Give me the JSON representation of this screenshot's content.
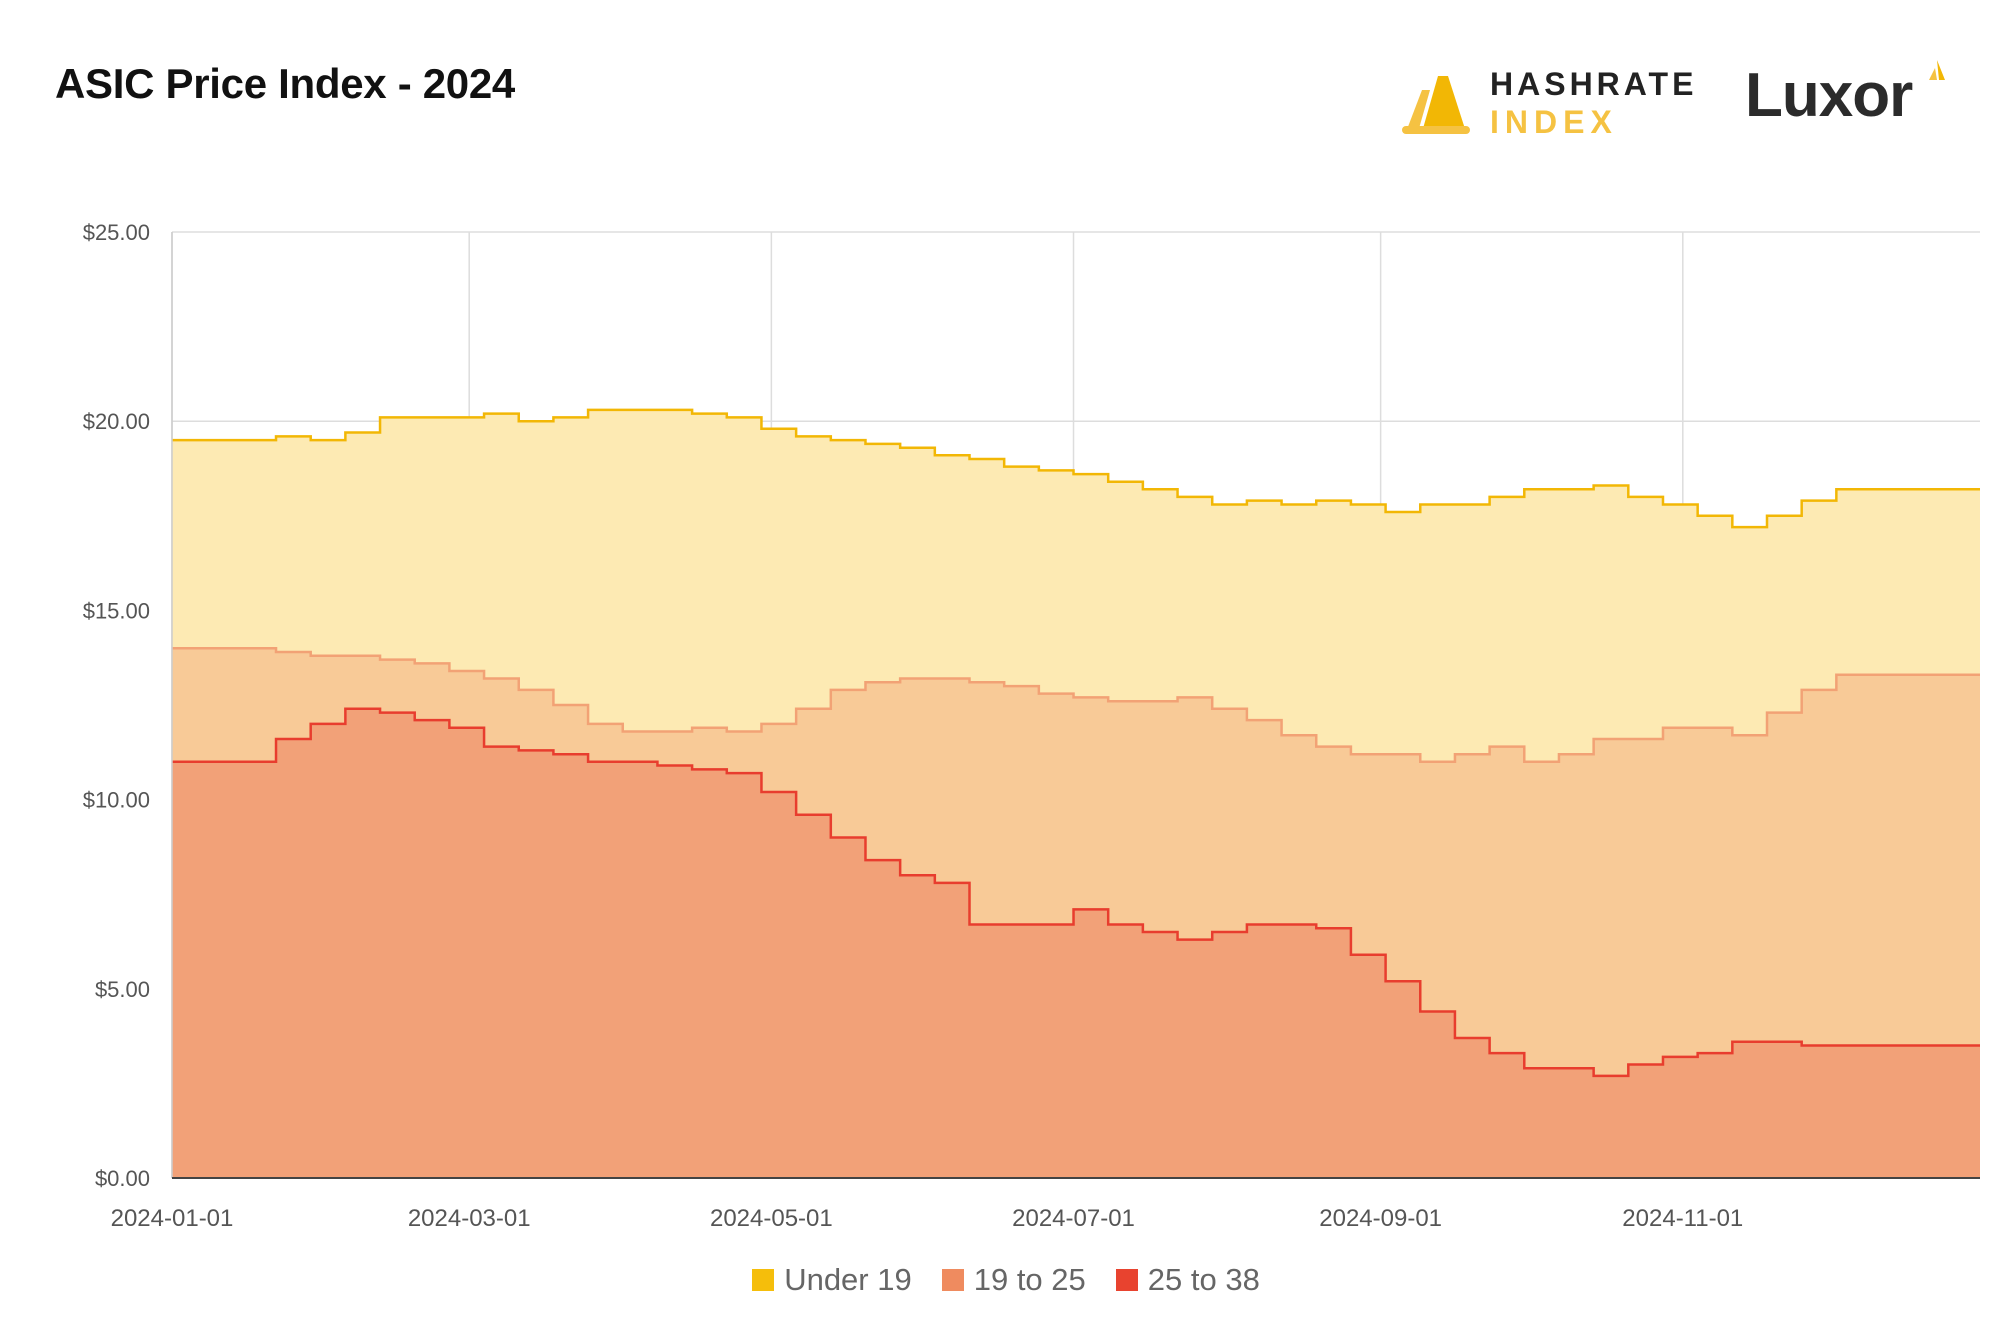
{
  "header": {
    "title": "ASIC Price Index - 2024"
  },
  "logos": {
    "hashrate_line1": "HASHRATE",
    "hashrate_line2": "INDEX",
    "luxor": "Luxor"
  },
  "colors": {
    "under19_line": "#f2b705",
    "under19_fill": "#fdeab3",
    "mid_line": "#f2a275",
    "mid_fill": "#f8ca97",
    "high_line": "#e83d2e",
    "high_fill": "#f2a178",
    "grid": "#dddddd",
    "axis_text": "#555555"
  },
  "chart_data": {
    "type": "area",
    "title": "ASIC Price Index - 2024",
    "xlabel": "",
    "ylabel": "",
    "x_range": [
      "2024-01-01",
      "2024-12-31"
    ],
    "ylim": [
      0,
      25
    ],
    "y_ticks": [
      0,
      5,
      10,
      15,
      20,
      25
    ],
    "y_tick_labels": [
      "$0.00",
      "$5.00",
      "$10.00",
      "$15.00",
      "$20.00",
      "$25.00"
    ],
    "x_ticks": [
      "2024-01-01",
      "2024-03-01",
      "2024-05-01",
      "2024-07-01",
      "2024-09-01",
      "2024-11-01"
    ],
    "x_tick_labels": [
      "2024-01-01",
      "2024-03-01",
      "2024-05-01",
      "2024-07-01",
      "2024-09-01",
      "2024-11-01"
    ],
    "grid": true,
    "legend_position": "bottom",
    "series": [
      {
        "name": "Under 19",
        "color": "#f2b705",
        "points": [
          [
            "2024-01-01",
            19.5
          ],
          [
            "2024-01-08",
            19.5
          ],
          [
            "2024-01-15",
            19.5
          ],
          [
            "2024-01-22",
            19.6
          ],
          [
            "2024-01-29",
            19.5
          ],
          [
            "2024-02-05",
            19.7
          ],
          [
            "2024-02-12",
            20.1
          ],
          [
            "2024-02-19",
            20.1
          ],
          [
            "2024-02-26",
            20.1
          ],
          [
            "2024-03-04",
            20.2
          ],
          [
            "2024-03-11",
            20.0
          ],
          [
            "2024-03-18",
            20.1
          ],
          [
            "2024-03-25",
            20.3
          ],
          [
            "2024-04-01",
            20.3
          ],
          [
            "2024-04-08",
            20.3
          ],
          [
            "2024-04-15",
            20.2
          ],
          [
            "2024-04-22",
            20.1
          ],
          [
            "2024-04-29",
            19.8
          ],
          [
            "2024-05-06",
            19.6
          ],
          [
            "2024-05-13",
            19.5
          ],
          [
            "2024-05-20",
            19.4
          ],
          [
            "2024-05-27",
            19.3
          ],
          [
            "2024-06-03",
            19.1
          ],
          [
            "2024-06-10",
            19.0
          ],
          [
            "2024-06-17",
            18.8
          ],
          [
            "2024-06-24",
            18.7
          ],
          [
            "2024-07-01",
            18.6
          ],
          [
            "2024-07-08",
            18.4
          ],
          [
            "2024-07-15",
            18.2
          ],
          [
            "2024-07-22",
            18.0
          ],
          [
            "2024-07-29",
            17.8
          ],
          [
            "2024-08-05",
            17.9
          ],
          [
            "2024-08-12",
            17.8
          ],
          [
            "2024-08-19",
            17.9
          ],
          [
            "2024-08-26",
            17.8
          ],
          [
            "2024-09-02",
            17.6
          ],
          [
            "2024-09-09",
            17.8
          ],
          [
            "2024-09-16",
            17.8
          ],
          [
            "2024-09-23",
            18.0
          ],
          [
            "2024-09-30",
            18.2
          ],
          [
            "2024-10-07",
            18.2
          ],
          [
            "2024-10-14",
            18.3
          ],
          [
            "2024-10-21",
            18.0
          ],
          [
            "2024-10-28",
            17.8
          ],
          [
            "2024-11-04",
            17.5
          ],
          [
            "2024-11-11",
            17.2
          ],
          [
            "2024-11-18",
            17.5
          ],
          [
            "2024-11-25",
            17.9
          ],
          [
            "2024-12-02",
            18.2
          ],
          [
            "2024-12-09",
            18.2
          ],
          [
            "2024-12-16",
            18.2
          ],
          [
            "2024-12-31",
            18.2
          ]
        ]
      },
      {
        "name": "19 to 25",
        "color": "#f2a275",
        "points": [
          [
            "2024-01-01",
            14.0
          ],
          [
            "2024-01-08",
            14.0
          ],
          [
            "2024-01-15",
            14.0
          ],
          [
            "2024-01-22",
            13.9
          ],
          [
            "2024-01-29",
            13.8
          ],
          [
            "2024-02-05",
            13.8
          ],
          [
            "2024-02-12",
            13.7
          ],
          [
            "2024-02-19",
            13.6
          ],
          [
            "2024-02-26",
            13.4
          ],
          [
            "2024-03-04",
            13.2
          ],
          [
            "2024-03-11",
            12.9
          ],
          [
            "2024-03-18",
            12.5
          ],
          [
            "2024-03-25",
            12.0
          ],
          [
            "2024-04-01",
            11.8
          ],
          [
            "2024-04-08",
            11.8
          ],
          [
            "2024-04-15",
            11.9
          ],
          [
            "2024-04-22",
            11.8
          ],
          [
            "2024-04-29",
            12.0
          ],
          [
            "2024-05-06",
            12.4
          ],
          [
            "2024-05-13",
            12.9
          ],
          [
            "2024-05-20",
            13.1
          ],
          [
            "2024-05-27",
            13.2
          ],
          [
            "2024-06-03",
            13.2
          ],
          [
            "2024-06-10",
            13.1
          ],
          [
            "2024-06-17",
            13.0
          ],
          [
            "2024-06-24",
            12.8
          ],
          [
            "2024-07-01",
            12.7
          ],
          [
            "2024-07-08",
            12.6
          ],
          [
            "2024-07-15",
            12.6
          ],
          [
            "2024-07-22",
            12.7
          ],
          [
            "2024-07-29",
            12.4
          ],
          [
            "2024-08-05",
            12.1
          ],
          [
            "2024-08-12",
            11.7
          ],
          [
            "2024-08-19",
            11.4
          ],
          [
            "2024-08-26",
            11.2
          ],
          [
            "2024-09-02",
            11.2
          ],
          [
            "2024-09-09",
            11.0
          ],
          [
            "2024-09-16",
            11.2
          ],
          [
            "2024-09-23",
            11.4
          ],
          [
            "2024-09-30",
            11.0
          ],
          [
            "2024-10-07",
            11.2
          ],
          [
            "2024-10-14",
            11.6
          ],
          [
            "2024-10-21",
            11.6
          ],
          [
            "2024-10-28",
            11.9
          ],
          [
            "2024-11-04",
            11.9
          ],
          [
            "2024-11-11",
            11.7
          ],
          [
            "2024-11-18",
            12.3
          ],
          [
            "2024-11-25",
            12.9
          ],
          [
            "2024-12-02",
            13.3
          ],
          [
            "2024-12-09",
            13.3
          ],
          [
            "2024-12-16",
            13.3
          ],
          [
            "2024-12-31",
            13.3
          ]
        ]
      },
      {
        "name": "25 to 38",
        "color": "#e83d2e",
        "points": [
          [
            "2024-01-01",
            11.0
          ],
          [
            "2024-01-08",
            11.0
          ],
          [
            "2024-01-15",
            11.0
          ],
          [
            "2024-01-22",
            11.6
          ],
          [
            "2024-01-29",
            12.0
          ],
          [
            "2024-02-05",
            12.4
          ],
          [
            "2024-02-12",
            12.3
          ],
          [
            "2024-02-19",
            12.1
          ],
          [
            "2024-02-26",
            11.9
          ],
          [
            "2024-03-04",
            11.4
          ],
          [
            "2024-03-11",
            11.3
          ],
          [
            "2024-03-18",
            11.2
          ],
          [
            "2024-03-25",
            11.0
          ],
          [
            "2024-04-01",
            11.0
          ],
          [
            "2024-04-08",
            10.9
          ],
          [
            "2024-04-15",
            10.8
          ],
          [
            "2024-04-22",
            10.7
          ],
          [
            "2024-04-29",
            10.2
          ],
          [
            "2024-05-06",
            9.6
          ],
          [
            "2024-05-13",
            9.0
          ],
          [
            "2024-05-20",
            8.4
          ],
          [
            "2024-05-27",
            8.0
          ],
          [
            "2024-06-03",
            7.8
          ],
          [
            "2024-06-10",
            6.7
          ],
          [
            "2024-06-17",
            6.7
          ],
          [
            "2024-06-24",
            6.7
          ],
          [
            "2024-07-01",
            7.1
          ],
          [
            "2024-07-08",
            6.7
          ],
          [
            "2024-07-15",
            6.5
          ],
          [
            "2024-07-22",
            6.3
          ],
          [
            "2024-07-29",
            6.5
          ],
          [
            "2024-08-05",
            6.7
          ],
          [
            "2024-08-12",
            6.7
          ],
          [
            "2024-08-19",
            6.6
          ],
          [
            "2024-08-26",
            5.9
          ],
          [
            "2024-09-02",
            5.2
          ],
          [
            "2024-09-09",
            4.4
          ],
          [
            "2024-09-16",
            3.7
          ],
          [
            "2024-09-23",
            3.3
          ],
          [
            "2024-09-30",
            2.9
          ],
          [
            "2024-10-07",
            2.9
          ],
          [
            "2024-10-14",
            2.7
          ],
          [
            "2024-10-21",
            3.0
          ],
          [
            "2024-10-28",
            3.2
          ],
          [
            "2024-11-04",
            3.3
          ],
          [
            "2024-11-11",
            3.6
          ],
          [
            "2024-11-18",
            3.6
          ],
          [
            "2024-11-25",
            3.5
          ],
          [
            "2024-12-02",
            3.5
          ],
          [
            "2024-12-09",
            3.5
          ],
          [
            "2024-12-16",
            3.5
          ],
          [
            "2024-12-31",
            3.5
          ]
        ]
      }
    ]
  },
  "legend": [
    {
      "label": "Under 19",
      "color": "#f5be0b"
    },
    {
      "label": "19 to 25",
      "color": "#ef8b5f"
    },
    {
      "label": "25 to 38",
      "color": "#e8432f"
    }
  ]
}
